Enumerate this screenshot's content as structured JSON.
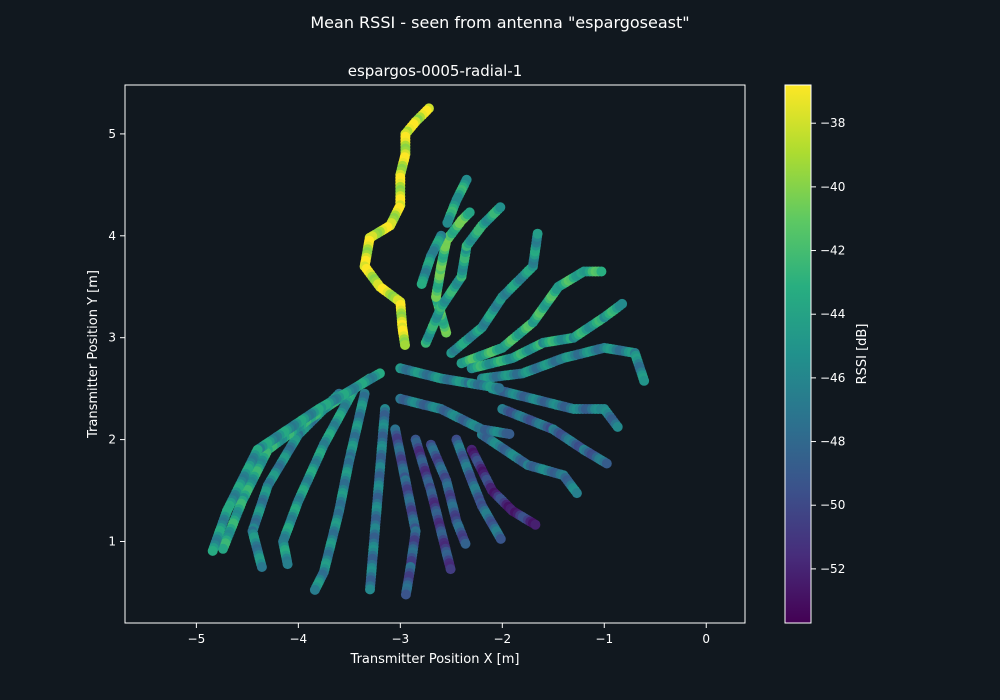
{
  "chart_data": {
    "type": "scatter",
    "suptitle": "Mean RSSI - seen from antenna \"espargoseast\"",
    "title": "espargos-0005-radial-1",
    "xlabel": "Transmitter Position X [m]",
    "ylabel": "Transmitter Position Y [m]",
    "xlim": [
      -5.7,
      0.38
    ],
    "ylim": [
      0.2,
      5.48
    ],
    "xticks": [
      -5,
      -4,
      -3,
      -2,
      -1,
      0
    ],
    "yticks": [
      1,
      2,
      3,
      4,
      5
    ],
    "xtick_labels": [
      "−5",
      "−4",
      "−3",
      "−2",
      "−1",
      "0"
    ],
    "ytick_labels": [
      "1",
      "2",
      "3",
      "4",
      "5"
    ],
    "grid": false,
    "colormap": "viridis",
    "colorbar": {
      "label": "RSSI [dB]",
      "range": [
        -53.7,
        -36.8
      ],
      "ticks": [
        -38,
        -40,
        -42,
        -44,
        -46,
        -48,
        -50,
        -52
      ],
      "tick_labels": [
        "−38",
        "−40",
        "−42",
        "−44",
        "−46",
        "−48",
        "−50",
        "−52"
      ]
    },
    "colors": {
      "background": "#11181f",
      "axes": "#11181f",
      "text": "#ffffff"
    },
    "trajectories": [
      {
        "rssi": -38,
        "points": [
          [
            -2.72,
            5.25
          ],
          [
            -2.85,
            5.12
          ],
          [
            -2.95,
            5.0
          ],
          [
            -2.95,
            4.8
          ],
          [
            -3.0,
            4.6
          ],
          [
            -3.0,
            4.3
          ],
          [
            -3.1,
            4.1
          ],
          [
            -3.3,
            3.98
          ],
          [
            -3.35,
            3.7
          ],
          [
            -3.2,
            3.5
          ],
          [
            -3.0,
            3.35
          ],
          [
            -2.98,
            3.1
          ],
          [
            -2.95,
            2.9
          ]
        ]
      },
      {
        "rssi": -42,
        "points": [
          [
            -2.55,
            3.05
          ],
          [
            -2.65,
            3.4
          ],
          [
            -2.6,
            3.7
          ],
          [
            -2.55,
            3.95
          ],
          [
            -2.4,
            4.15
          ],
          [
            -2.3,
            4.25
          ]
        ]
      },
      {
        "rssi": -44,
        "points": [
          [
            -2.75,
            2.95
          ],
          [
            -2.6,
            3.3
          ],
          [
            -2.4,
            3.6
          ],
          [
            -2.35,
            3.9
          ],
          [
            -2.2,
            4.1
          ],
          [
            -2.0,
            4.3
          ]
        ]
      },
      {
        "rssi": -45,
        "points": [
          [
            -2.5,
            2.85
          ],
          [
            -2.2,
            3.1
          ],
          [
            -2.0,
            3.4
          ],
          [
            -1.7,
            3.7
          ],
          [
            -1.65,
            4.05
          ]
        ]
      },
      {
        "rssi": -43,
        "points": [
          [
            -2.4,
            2.75
          ],
          [
            -2.0,
            2.9
          ],
          [
            -1.7,
            3.15
          ],
          [
            -1.45,
            3.5
          ],
          [
            -1.2,
            3.65
          ],
          [
            -1.0,
            3.65
          ]
        ]
      },
      {
        "rssi": -44,
        "points": [
          [
            -2.3,
            2.7
          ],
          [
            -1.9,
            2.8
          ],
          [
            -1.6,
            2.95
          ],
          [
            -1.3,
            3.0
          ],
          [
            -1.0,
            3.2
          ],
          [
            -0.8,
            3.35
          ]
        ]
      },
      {
        "rssi": -46,
        "points": [
          [
            -2.2,
            2.6
          ],
          [
            -1.8,
            2.65
          ],
          [
            -1.4,
            2.8
          ],
          [
            -1.0,
            2.9
          ],
          [
            -0.7,
            2.85
          ],
          [
            -0.6,
            2.55
          ]
        ]
      },
      {
        "rssi": -47,
        "points": [
          [
            -2.1,
            2.5
          ],
          [
            -1.7,
            2.4
          ],
          [
            -1.3,
            2.3
          ],
          [
            -1.0,
            2.3
          ],
          [
            -0.85,
            2.1
          ]
        ]
      },
      {
        "rssi": -48,
        "points": [
          [
            -2.0,
            2.3
          ],
          [
            -1.5,
            2.1
          ],
          [
            -1.2,
            1.9
          ],
          [
            -0.95,
            1.75
          ]
        ]
      },
      {
        "rssi": -47,
        "points": [
          [
            -2.2,
            2.05
          ],
          [
            -1.75,
            1.75
          ],
          [
            -1.4,
            1.65
          ],
          [
            -1.25,
            1.45
          ]
        ]
      },
      {
        "rssi": -51,
        "points": [
          [
            -2.3,
            1.9
          ],
          [
            -2.1,
            1.5
          ],
          [
            -1.9,
            1.3
          ],
          [
            -1.65,
            1.15
          ]
        ]
      },
      {
        "rssi": -48,
        "points": [
          [
            -2.45,
            2.0
          ],
          [
            -2.3,
            1.6
          ],
          [
            -2.2,
            1.35
          ],
          [
            -2.0,
            1.0
          ]
        ]
      },
      {
        "rssi": -49,
        "points": [
          [
            -2.7,
            1.95
          ],
          [
            -2.55,
            1.6
          ],
          [
            -2.45,
            1.2
          ],
          [
            -2.35,
            0.95
          ]
        ]
      },
      {
        "rssi": -50,
        "points": [
          [
            -2.85,
            2.0
          ],
          [
            -2.7,
            1.5
          ],
          [
            -2.6,
            1.1
          ],
          [
            -2.5,
            0.7
          ]
        ]
      },
      {
        "rssi": -49,
        "points": [
          [
            -3.05,
            2.1
          ],
          [
            -2.95,
            1.6
          ],
          [
            -2.85,
            1.1
          ],
          [
            -2.9,
            0.75
          ],
          [
            -2.95,
            0.45
          ]
        ]
      },
      {
        "rssi": -47,
        "points": [
          [
            -3.15,
            2.3
          ],
          [
            -3.2,
            1.7
          ],
          [
            -3.25,
            1.1
          ],
          [
            -3.3,
            0.5
          ]
        ]
      },
      {
        "rssi": -46,
        "points": [
          [
            -3.35,
            2.45
          ],
          [
            -3.5,
            1.8
          ],
          [
            -3.6,
            1.3
          ],
          [
            -3.75,
            0.7
          ],
          [
            -3.85,
            0.5
          ]
        ]
      },
      {
        "rssi": -45,
        "points": [
          [
            -3.45,
            2.5
          ],
          [
            -3.75,
            1.95
          ],
          [
            -4.0,
            1.4
          ],
          [
            -4.15,
            1.0
          ],
          [
            -4.1,
            0.75
          ]
        ]
      },
      {
        "rssi": -46,
        "points": [
          [
            -3.6,
            2.45
          ],
          [
            -4.0,
            2.05
          ],
          [
            -4.3,
            1.55
          ],
          [
            -4.45,
            1.1
          ],
          [
            -4.35,
            0.72
          ]
        ]
      },
      {
        "rssi": -44,
        "points": [
          [
            -3.3,
            2.6
          ],
          [
            -3.9,
            2.2
          ],
          [
            -4.3,
            1.9
          ],
          [
            -4.55,
            1.4
          ],
          [
            -4.75,
            0.9
          ]
        ]
      },
      {
        "rssi": -45,
        "points": [
          [
            -3.2,
            2.65
          ],
          [
            -3.8,
            2.3
          ],
          [
            -4.4,
            1.9
          ],
          [
            -4.7,
            1.3
          ],
          [
            -4.85,
            0.88
          ]
        ]
      },
      {
        "rssi": -46,
        "points": [
          [
            -3.0,
            2.7
          ],
          [
            -2.6,
            2.6
          ],
          [
            -2.3,
            2.55
          ],
          [
            -2.0,
            2.5
          ]
        ]
      },
      {
        "rssi": -47,
        "points": [
          [
            -3.0,
            2.4
          ],
          [
            -2.6,
            2.3
          ],
          [
            -2.2,
            2.1
          ],
          [
            -1.9,
            2.05
          ]
        ]
      },
      {
        "rssi": -44,
        "points": [
          [
            -2.35,
            4.55
          ],
          [
            -2.45,
            4.35
          ],
          [
            -2.55,
            4.1
          ]
        ]
      },
      {
        "rssi": -45,
        "points": [
          [
            -2.6,
            4.0
          ],
          [
            -2.7,
            3.8
          ],
          [
            -2.8,
            3.5
          ]
        ]
      }
    ]
  }
}
